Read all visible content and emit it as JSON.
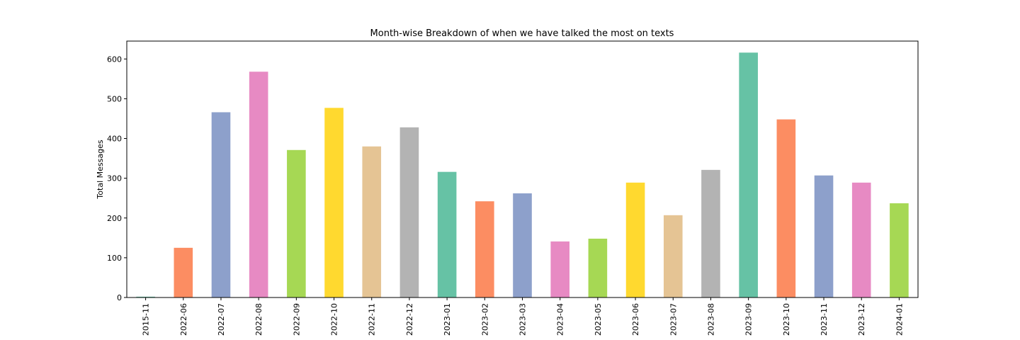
{
  "chart_data": {
    "type": "bar",
    "title": "Month-wise Breakdown of when we have talked the most on texts",
    "xlabel": "",
    "ylabel": "Total Messages",
    "ylim": [
      0,
      645
    ],
    "yticks": [
      0,
      100,
      200,
      300,
      400,
      500,
      600
    ],
    "grid": false,
    "legend": "none",
    "categories": [
      "2015-11",
      "2022-06",
      "2022-07",
      "2022-08",
      "2022-09",
      "2022-10",
      "2022-11",
      "2022-12",
      "2023-01",
      "2023-02",
      "2023-03",
      "2023-04",
      "2023-05",
      "2023-06",
      "2023-07",
      "2023-08",
      "2023-09",
      "2023-10",
      "2023-11",
      "2023-12",
      "2024-01"
    ],
    "values": [
      2,
      125,
      466,
      568,
      371,
      477,
      380,
      428,
      316,
      242,
      262,
      141,
      148,
      289,
      207,
      321,
      616,
      448,
      307,
      289,
      237
    ],
    "colors": [
      "#66c2a5",
      "#fc8d62",
      "#8da0cb",
      "#e78ac3",
      "#a6d854",
      "#ffd92f",
      "#e5c494",
      "#b3b3b3"
    ]
  }
}
